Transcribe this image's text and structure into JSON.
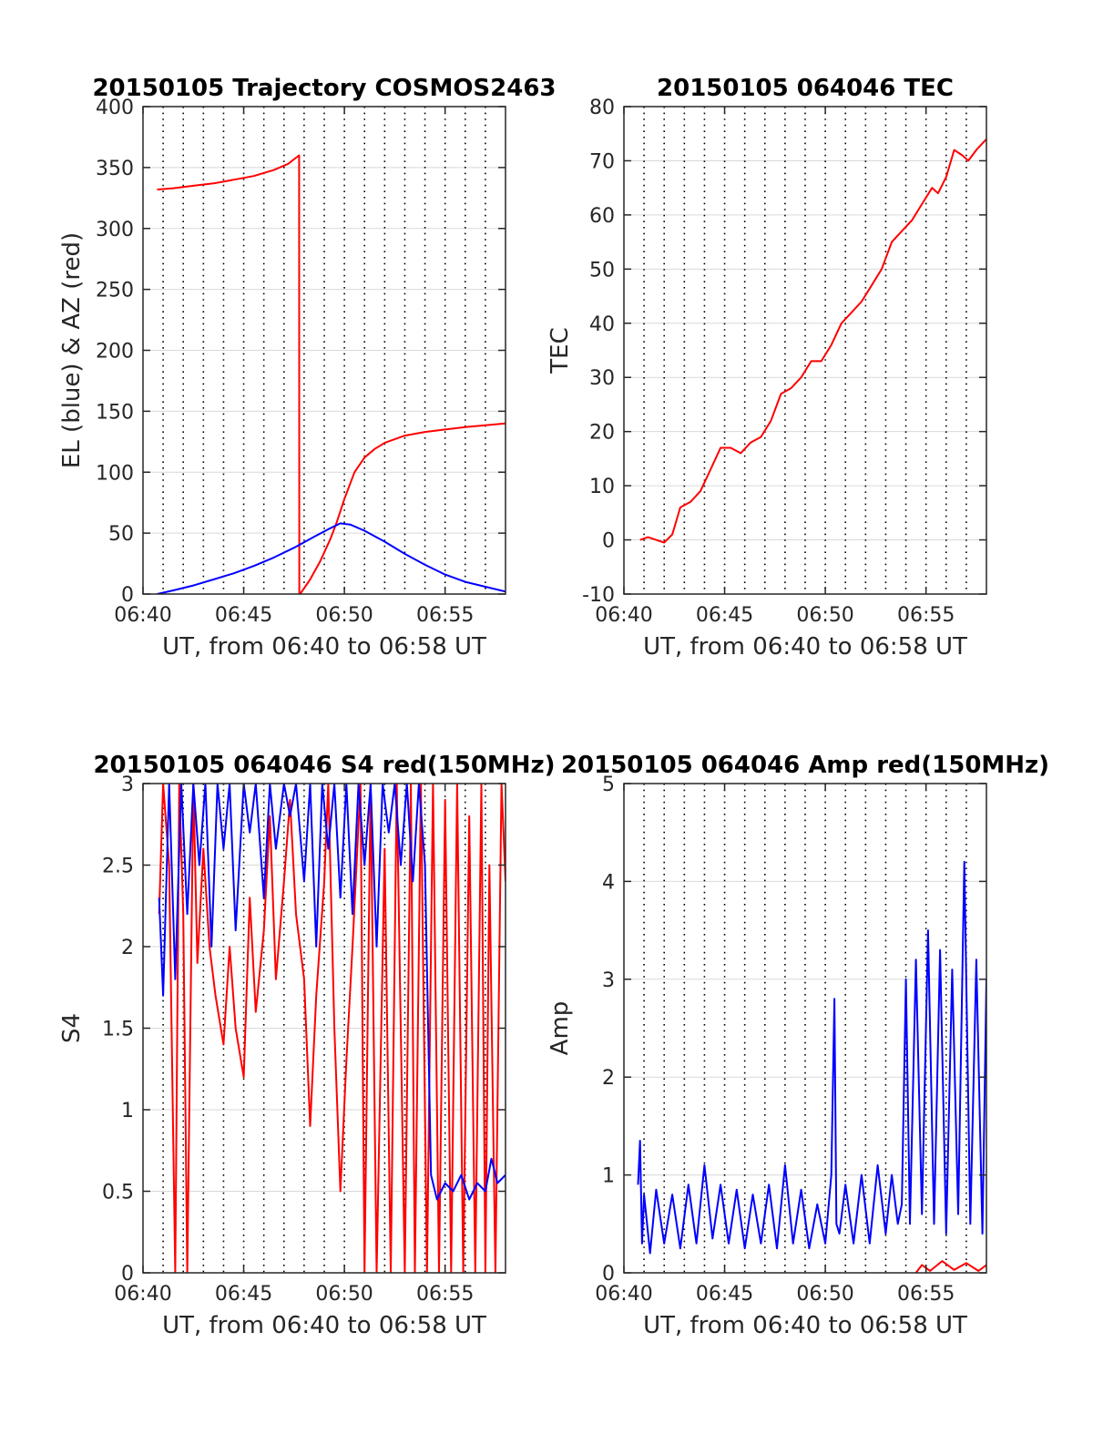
{
  "figure": {
    "background": "#ffffff",
    "colors": {
      "red": "#ff0000",
      "blue": "#0000ff",
      "grid": "#d9d9d9",
      "axis": "#262626"
    }
  },
  "chart_data": [
    {
      "id": "trajectory",
      "type": "line",
      "title": "20150105 Trajectory COSMOS2463",
      "xlabel": "UT, from 06:40 to 06:58 UT",
      "ylabel": "EL (blue) & AZ (red)",
      "xlim": [
        40,
        58
      ],
      "ylim": [
        0,
        400
      ],
      "x_ticks": [
        40,
        45,
        50,
        55
      ],
      "x_tick_labels": [
        "06:40",
        "06:45",
        "06:50",
        "06:55"
      ],
      "y_ticks": [
        0,
        50,
        100,
        150,
        200,
        250,
        300,
        350,
        400
      ],
      "y_tick_labels": [
        "0",
        "50",
        "100",
        "150",
        "200",
        "250",
        "300",
        "350",
        "400"
      ],
      "grid": "dotted vertical every 1 min, light horizontal at y ticks",
      "series": [
        {
          "color": "#ff0000",
          "x": [
            40.7,
            41.5,
            42.5,
            43.5,
            44.5,
            45.5,
            46.5,
            47.2,
            47.75,
            47.76,
            47.8,
            48.3,
            48.8,
            49.3,
            49.6,
            50.0,
            50.5,
            51.0,
            51.5,
            52.0,
            53.0,
            54.0,
            55.0,
            56.0,
            57.0,
            58.0
          ],
          "y": [
            332,
            333,
            335,
            337,
            340,
            343,
            348,
            353,
            360,
            0,
            0,
            12,
            27,
            45,
            58,
            78,
            100,
            112,
            119,
            124,
            130,
            133,
            135,
            137,
            138.5,
            140
          ]
        },
        {
          "color": "#0000ff",
          "x": [
            40.7,
            41.5,
            42.5,
            43.5,
            44.5,
            45.5,
            46.5,
            47.5,
            48.5,
            49.3,
            49.8,
            50.3,
            51.0,
            52.0,
            53.0,
            54.0,
            55.0,
            56.0,
            57.0,
            58.0
          ],
          "y": [
            0,
            3,
            7,
            12,
            17,
            23,
            30,
            38,
            47,
            54,
            58,
            57,
            52,
            43,
            33,
            24,
            16,
            10,
            6,
            2
          ]
        }
      ]
    },
    {
      "id": "tec",
      "type": "line",
      "title": "20150105 064046 TEC",
      "xlabel": "UT, from 06:40 to 06:58 UT",
      "ylabel": "TEC",
      "xlim": [
        40,
        58
      ],
      "ylim": [
        -10,
        80
      ],
      "x_ticks": [
        40,
        45,
        50,
        55
      ],
      "x_tick_labels": [
        "06:40",
        "06:45",
        "06:50",
        "06:55"
      ],
      "y_ticks": [
        -10,
        0,
        10,
        20,
        30,
        40,
        50,
        60,
        70,
        80
      ],
      "y_tick_labels": [
        "-10",
        "0",
        "10",
        "20",
        "30",
        "40",
        "50",
        "60",
        "70",
        "80"
      ],
      "series": [
        {
          "color": "#ff0000",
          "x": [
            40.8,
            41.2,
            41.6,
            42.0,
            42.4,
            42.8,
            43.3,
            43.8,
            44.3,
            44.8,
            45.3,
            45.8,
            46.3,
            46.8,
            47.3,
            47.8,
            48.3,
            48.8,
            49.3,
            49.8,
            50.3,
            50.8,
            51.3,
            51.8,
            52.3,
            52.8,
            53.3,
            53.8,
            54.3,
            54.8,
            55.3,
            55.6,
            56.0,
            56.4,
            56.8,
            57.1,
            57.5,
            58.0
          ],
          "y": [
            0,
            0.5,
            0,
            -0.5,
            1,
            6,
            7,
            9,
            13,
            17,
            17,
            16,
            18,
            19,
            22,
            27,
            28,
            30,
            33,
            33,
            36,
            40,
            42,
            44,
            47,
            50,
            55,
            57,
            59,
            62,
            65,
            64,
            67,
            72,
            71,
            70,
            72,
            74
          ]
        }
      ]
    },
    {
      "id": "s4",
      "type": "line",
      "title": "20150105 064046 S4 red(150MHz)",
      "xlabel": "UT, from 06:40 to 06:58 UT",
      "ylabel": "S4",
      "xlim": [
        40,
        58
      ],
      "ylim": [
        0,
        3
      ],
      "x_ticks": [
        40,
        45,
        50,
        55
      ],
      "x_tick_labels": [
        "06:40",
        "06:45",
        "06:50",
        "06:55"
      ],
      "y_ticks": [
        0,
        0.5,
        1,
        1.5,
        2,
        2.5,
        3
      ],
      "y_tick_labels": [
        "0",
        "0.5",
        "1",
        "1.5",
        "2",
        "2.5",
        "3"
      ],
      "series": [
        {
          "color": "#ff0000",
          "x": [
            40.8,
            41.0,
            41.3,
            41.6,
            41.8,
            42.0,
            42.2,
            42.5,
            42.7,
            43.0,
            43.3,
            43.6,
            44.0,
            44.3,
            44.6,
            45.0,
            45.3,
            45.6,
            46.0,
            46.3,
            46.6,
            47.0,
            47.3,
            47.6,
            48.0,
            48.3,
            48.6,
            49.0,
            49.2,
            49.5,
            49.8,
            50.1,
            50.4,
            50.8,
            51.0,
            51.3,
            51.6,
            52.0,
            52.3,
            52.6,
            53.0,
            53.3,
            53.5,
            53.8,
            54.1,
            54.4,
            54.7,
            55.0,
            55.3,
            55.6,
            55.9,
            56.2,
            56.5,
            56.8,
            57.0,
            57.2,
            57.5,
            57.8,
            58.0
          ],
          "y": [
            2.2,
            3,
            2.5,
            0,
            3,
            2.2,
            0,
            3,
            1.9,
            2.6,
            2.0,
            1.7,
            1.4,
            2.0,
            1.5,
            1.2,
            2.3,
            1.6,
            2.1,
            2.8,
            1.8,
            2.4,
            2.9,
            2.2,
            1.8,
            0.9,
            1.7,
            2.4,
            3,
            1.5,
            0.5,
            1.3,
            2.0,
            3,
            0,
            3,
            0,
            2.6,
            0,
            3,
            0,
            3,
            0,
            3,
            0,
            3,
            0,
            2.9,
            0,
            3,
            0,
            2.8,
            0,
            3,
            0,
            2.5,
            0,
            3,
            2.4
          ]
        },
        {
          "color": "#0000ff",
          "x": [
            40.8,
            41.0,
            41.3,
            41.6,
            41.9,
            42.2,
            42.5,
            42.8,
            43.1,
            43.4,
            43.7,
            44.0,
            44.3,
            44.6,
            45.0,
            45.3,
            45.6,
            46.0,
            46.3,
            46.6,
            47.0,
            47.3,
            47.6,
            48.0,
            48.3,
            48.6,
            48.9,
            49.2,
            49.5,
            49.8,
            50.1,
            50.4,
            50.7,
            51.0,
            51.3,
            51.6,
            51.9,
            52.2,
            52.5,
            52.8,
            53.1,
            53.4,
            53.7,
            54.0,
            54.3,
            54.6,
            55.0,
            55.4,
            55.8,
            56.2,
            56.6,
            57.0,
            57.3,
            57.6,
            58.0
          ],
          "y": [
            2.3,
            1.7,
            3,
            1.8,
            3,
            2.2,
            3,
            2.5,
            3,
            2.0,
            3,
            2.6,
            3,
            2.1,
            3,
            2.7,
            3,
            2.3,
            3,
            2.6,
            3,
            2.8,
            3,
            2.4,
            3,
            2.0,
            3,
            2.6,
            3,
            2.3,
            3,
            2.2,
            3,
            2.5,
            3,
            2.0,
            3,
            2.7,
            3,
            2.5,
            3,
            2.4,
            3,
            2.5,
            0.6,
            0.45,
            0.55,
            0.5,
            0.6,
            0.45,
            0.55,
            0.5,
            0.7,
            0.55,
            0.6
          ]
        }
      ]
    },
    {
      "id": "amp",
      "type": "line",
      "title": "20150105 064046 Amp red(150MHz)",
      "xlabel": "UT, from 06:40 to 06:58 UT",
      "ylabel": "Amp",
      "xlim": [
        40,
        58
      ],
      "ylim": [
        0,
        5
      ],
      "x_ticks": [
        40,
        45,
        50,
        55
      ],
      "x_tick_labels": [
        "06:40",
        "06:45",
        "06:50",
        "06:55"
      ],
      "y_ticks": [
        0,
        1,
        2,
        3,
        4,
        5
      ],
      "y_tick_labels": [
        "0",
        "1",
        "2",
        "3",
        "4",
        "5"
      ],
      "series": [
        {
          "color": "#0000ff",
          "x": [
            40.7,
            40.8,
            40.9,
            41.0,
            41.3,
            41.6,
            42.0,
            42.4,
            42.8,
            43.2,
            43.6,
            44.0,
            44.4,
            44.8,
            45.2,
            45.6,
            46.0,
            46.4,
            46.8,
            47.2,
            47.6,
            48.0,
            48.4,
            48.8,
            49.2,
            49.6,
            50.0,
            50.3,
            50.45,
            50.55,
            50.7,
            51.0,
            51.4,
            51.8,
            52.2,
            52.6,
            53.0,
            53.3,
            53.6,
            53.8,
            54.0,
            54.2,
            54.5,
            54.8,
            55.1,
            55.4,
            55.7,
            56.0,
            56.3,
            56.6,
            56.9,
            57.2,
            57.5,
            57.8,
            58.0
          ],
          "y": [
            0.9,
            1.35,
            0.3,
            0.8,
            0.2,
            0.85,
            0.3,
            0.8,
            0.25,
            0.9,
            0.3,
            1.1,
            0.35,
            0.9,
            0.3,
            0.85,
            0.25,
            0.8,
            0.3,
            0.9,
            0.25,
            1.1,
            0.3,
            0.85,
            0.25,
            0.7,
            0.3,
            1.0,
            2.8,
            0.5,
            0.4,
            0.9,
            0.3,
            1.0,
            0.3,
            1.1,
            0.4,
            1.0,
            0.5,
            0.7,
            3.0,
            0.5,
            3.2,
            0.6,
            3.5,
            0.5,
            3.3,
            0.4,
            3.1,
            0.6,
            4.2,
            0.5,
            3.2,
            0.4,
            3.0
          ]
        },
        {
          "color": "#ff0000",
          "x": [
            54.5,
            54.8,
            55.2,
            55.8,
            56.4,
            57.0,
            57.6,
            58.0
          ],
          "y": [
            0,
            0.08,
            0.02,
            0.12,
            0.03,
            0.1,
            0.02,
            0.08
          ]
        }
      ]
    }
  ]
}
